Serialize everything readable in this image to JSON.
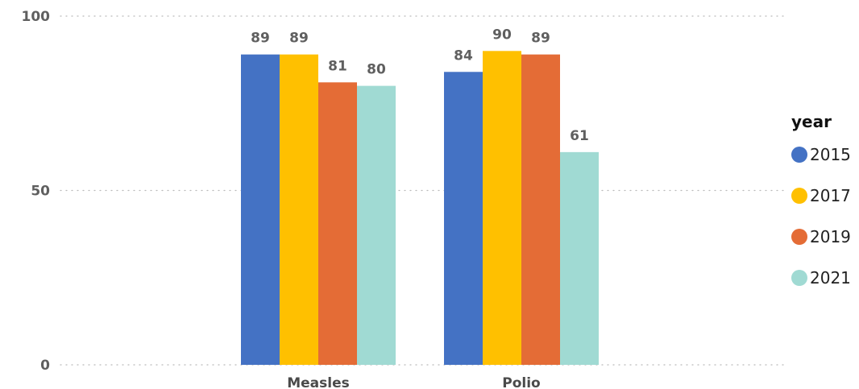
{
  "chart_data": {
    "type": "bar",
    "categories": [
      "Measles",
      "Polio"
    ],
    "series": [
      {
        "name": "2015",
        "color": "#4472C4",
        "values": [
          89,
          84
        ]
      },
      {
        "name": "2017",
        "color": "#FFC000",
        "values": [
          89,
          90
        ]
      },
      {
        "name": "2019",
        "color": "#E46C36",
        "values": [
          81,
          89
        ]
      },
      {
        "name": "2021",
        "color": "#A0DAD3",
        "values": [
          80,
          61
        ]
      }
    ],
    "ylim": [
      0,
      100
    ],
    "yticks": [
      0,
      50,
      100
    ],
    "grid": true,
    "data_labels": true,
    "legend": {
      "title": "year",
      "placement": "right"
    }
  }
}
